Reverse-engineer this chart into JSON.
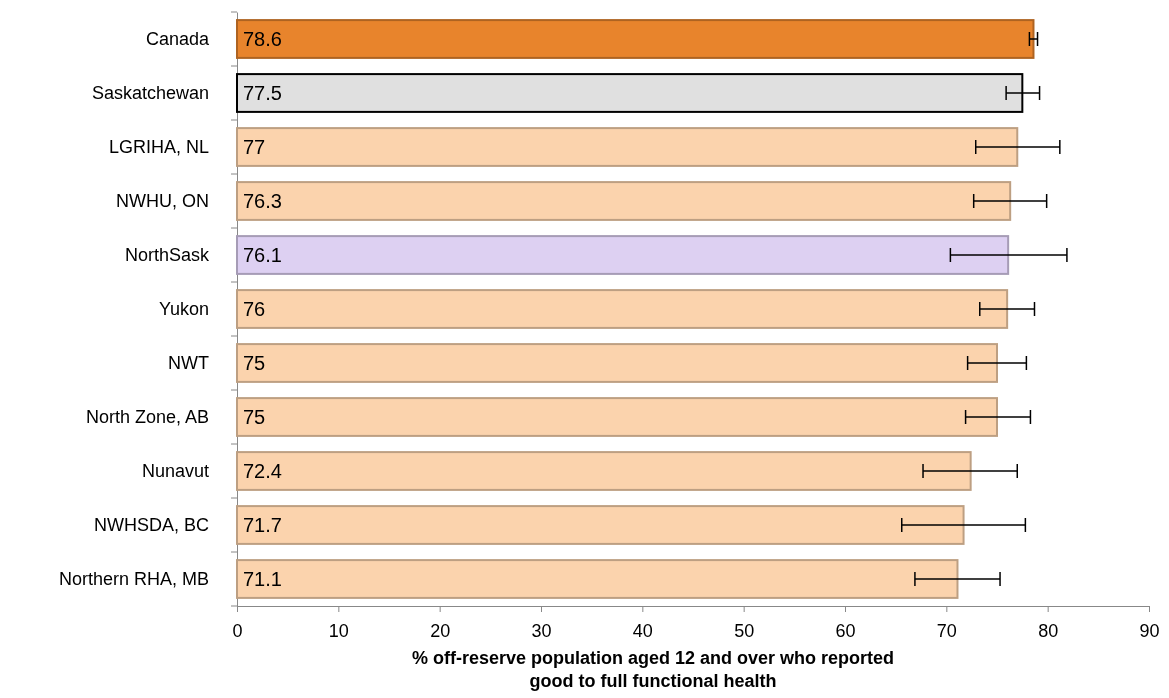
{
  "chart_data": {
    "type": "bar",
    "orientation": "horizontal",
    "categories": [
      "Canada",
      "Saskatchewan",
      "LGRIHA, NL",
      "NWHU, ON",
      "NorthSask",
      "Yukon",
      "NWT",
      "North Zone, AB",
      "Nunavut",
      "NWHSDA, BC",
      "Northern RHA, MB"
    ],
    "values": [
      78.6,
      77.5,
      77,
      76.3,
      76.1,
      76,
      75,
      75,
      72.4,
      71.7,
      71.1
    ],
    "colors": [
      "#e8842c",
      "#e0e0e0",
      "#fbd3ad",
      "#fbd3ad",
      "#ddd0f2",
      "#fbd3ad",
      "#fbd3ad",
      "#fbd3ad",
      "#fbd3ad",
      "#fbd3ad",
      "#fbd3ad"
    ],
    "errors": [
      [
        78.2,
        79.0
      ],
      [
        75.9,
        79.2
      ],
      [
        72.9,
        81.2
      ],
      [
        72.7,
        79.9
      ],
      [
        70.4,
        81.9
      ],
      [
        73.3,
        78.7
      ],
      [
        72.1,
        77.9
      ],
      [
        71.9,
        78.3
      ],
      [
        67.7,
        77.0
      ],
      [
        65.6,
        77.8
      ],
      [
        66.9,
        75.3
      ]
    ],
    "xlim": [
      0,
      90
    ],
    "xticks": [
      0,
      10,
      20,
      30,
      40,
      50,
      60,
      70,
      80,
      90
    ],
    "xlabel": "% off-reserve population aged 12 and over who reported good to full functional health",
    "data_labels": true
  }
}
